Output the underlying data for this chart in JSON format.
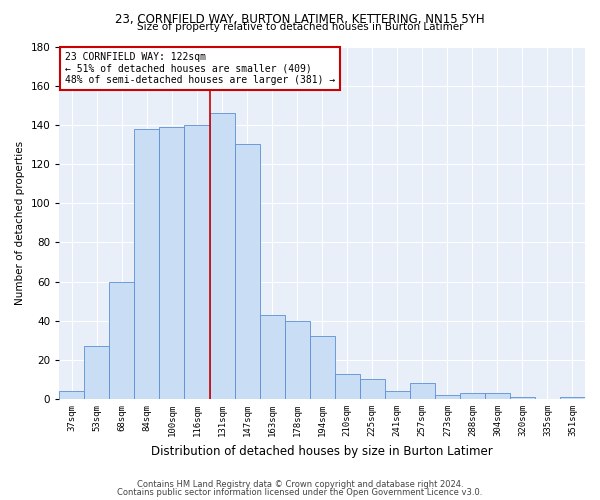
{
  "title": "23, CORNFIELD WAY, BURTON LATIMER, KETTERING, NN15 5YH",
  "subtitle": "Size of property relative to detached houses in Burton Latimer",
  "xlabel": "Distribution of detached houses by size in Burton Latimer",
  "ylabel": "Number of detached properties",
  "categories": [
    "37sqm",
    "53sqm",
    "68sqm",
    "84sqm",
    "100sqm",
    "116sqm",
    "131sqm",
    "147sqm",
    "163sqm",
    "178sqm",
    "194sqm",
    "210sqm",
    "225sqm",
    "241sqm",
    "257sqm",
    "273sqm",
    "288sqm",
    "304sqm",
    "320sqm",
    "335sqm",
    "351sqm"
  ],
  "values": [
    4,
    27,
    60,
    138,
    139,
    140,
    146,
    130,
    43,
    40,
    32,
    13,
    10,
    4,
    8,
    2,
    3,
    3,
    1,
    0,
    1
  ],
  "bar_color": "#c9ddf5",
  "bar_edge_color": "#5b8fd4",
  "property_line_x": 5.5,
  "annotation_line1": "23 CORNFIELD WAY: 122sqm",
  "annotation_line2": "← 51% of detached houses are smaller (409)",
  "annotation_line3": "48% of semi-detached houses are larger (381) →",
  "annotation_box_color": "#ffffff",
  "annotation_box_edge_color": "#cc0000",
  "line_color": "#cc0000",
  "ylim": [
    0,
    180
  ],
  "yticks": [
    0,
    20,
    40,
    60,
    80,
    100,
    120,
    140,
    160,
    180
  ],
  "background_color": "#e8eff8",
  "footer_line1": "Contains HM Land Registry data © Crown copyright and database right 2024.",
  "footer_line2": "Contains public sector information licensed under the Open Government Licence v3.0."
}
